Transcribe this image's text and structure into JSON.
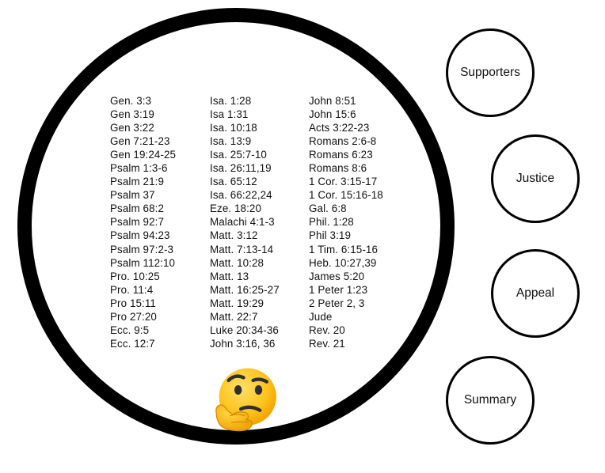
{
  "references": {
    "column_1": [
      "Gen. 3:3",
      "Gen 3:19",
      "Gen 3:22",
      "Gen 7:21-23",
      "Gen 19:24-25",
      "Psalm 1:3-6",
      "Psalm 21:9",
      "Psalm 37",
      "Psalm 68:2",
      "Psalm 92:7",
      "Psalm 94:23",
      "Psalm 97:2-3",
      "Psalm 112:10",
      "Pro. 10:25",
      "Pro. 11:4",
      "Pro 15:11",
      "Pro 27:20",
      "Ecc. 9:5",
      "Ecc. 12:7"
    ],
    "column_2": [
      "Isa. 1:28",
      "Isa 1:31",
      "Isa. 10:18",
      "Isa. 13:9",
      "Isa. 25:7-10",
      "Isa. 26:11,19",
      "Isa. 65:12",
      "Isa. 66:22,24",
      "Eze. 18:20",
      "Malachi 4:1-3",
      "Matt. 3:12",
      "Matt. 7:13-14",
      "Matt. 10:28",
      "Matt. 13",
      "Matt. 16:25-27",
      "Matt. 19:29",
      "Matt. 22:7",
      "Luke 20:34-36",
      "John 3:16, 36"
    ],
    "column_3": [
      "John 8:51",
      "John 15:6",
      "Acts 3:22-23",
      "Romans 2:6-8",
      "Romans 6:23",
      "Romans 8:6",
      "1 Cor. 3:15-17",
      "1 Cor. 15:16-18",
      "Gal. 6:8",
      "Phil. 1:28",
      "Phil 3:19",
      "1 Tim. 6:15-16",
      "Heb. 10:27,39",
      "James 5:20",
      "1 Peter 1:23",
      "2 Peter 2, 3",
      "Jude",
      "Rev. 20",
      "Rev. 21"
    ]
  },
  "emoji_icon": "thinking-face-icon",
  "nav": {
    "supporters": "Supporters",
    "justice": "Justice",
    "appeal": "Appeal",
    "summary": "Summary"
  },
  "colors": {
    "ring": "#000000",
    "emoji_face": "#fcc21b",
    "emoji_features": "#2f2f2f"
  }
}
